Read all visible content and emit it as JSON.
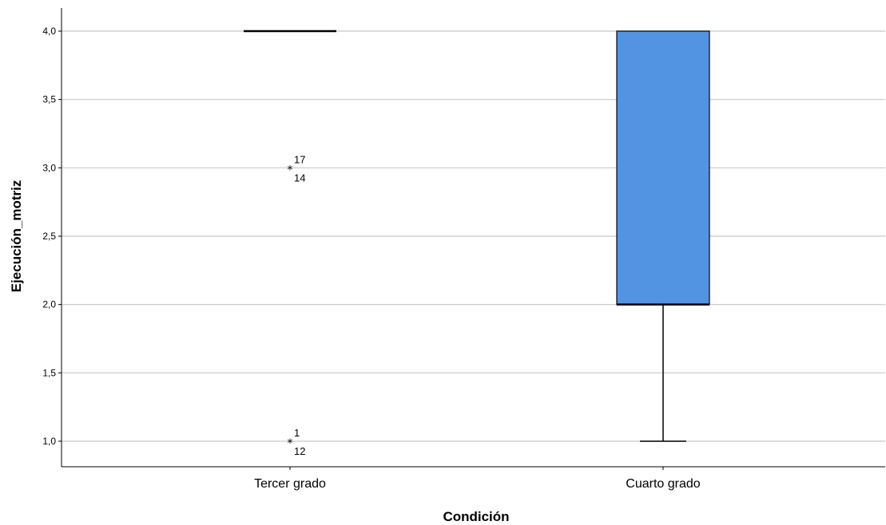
{
  "chart_data": {
    "type": "boxplot",
    "xlabel": "Condición",
    "ylabel": "Ejecución_motriz",
    "ylim": [
      0.85,
      4.17
    ],
    "yticks": [
      "1,0",
      "1,5",
      "2,0",
      "2,5",
      "3,0",
      "3,5",
      "4,0"
    ],
    "ytick_values": [
      1.0,
      1.5,
      2.0,
      2.5,
      3.0,
      3.5,
      4.0
    ],
    "grid": true,
    "categories": [
      "Tercer grado",
      "Cuarto grado"
    ],
    "boxes": [
      {
        "category": "Tercer grado",
        "min": 4.0,
        "q1": 4.0,
        "median": 4.0,
        "q3": 4.0,
        "max": 4.0,
        "outliers": [
          {
            "value": 3.0,
            "marker": "*",
            "labels": [
              "17",
              "14"
            ]
          },
          {
            "value": 1.0,
            "marker": "*",
            "labels": [
              "1",
              "12"
            ]
          }
        ]
      },
      {
        "category": "Cuarto grado",
        "min": 1.0,
        "q1": 2.0,
        "median": 2.0,
        "q3": 4.0,
        "max": 4.0,
        "outliers": []
      }
    ],
    "box_color": "#5294e2"
  }
}
